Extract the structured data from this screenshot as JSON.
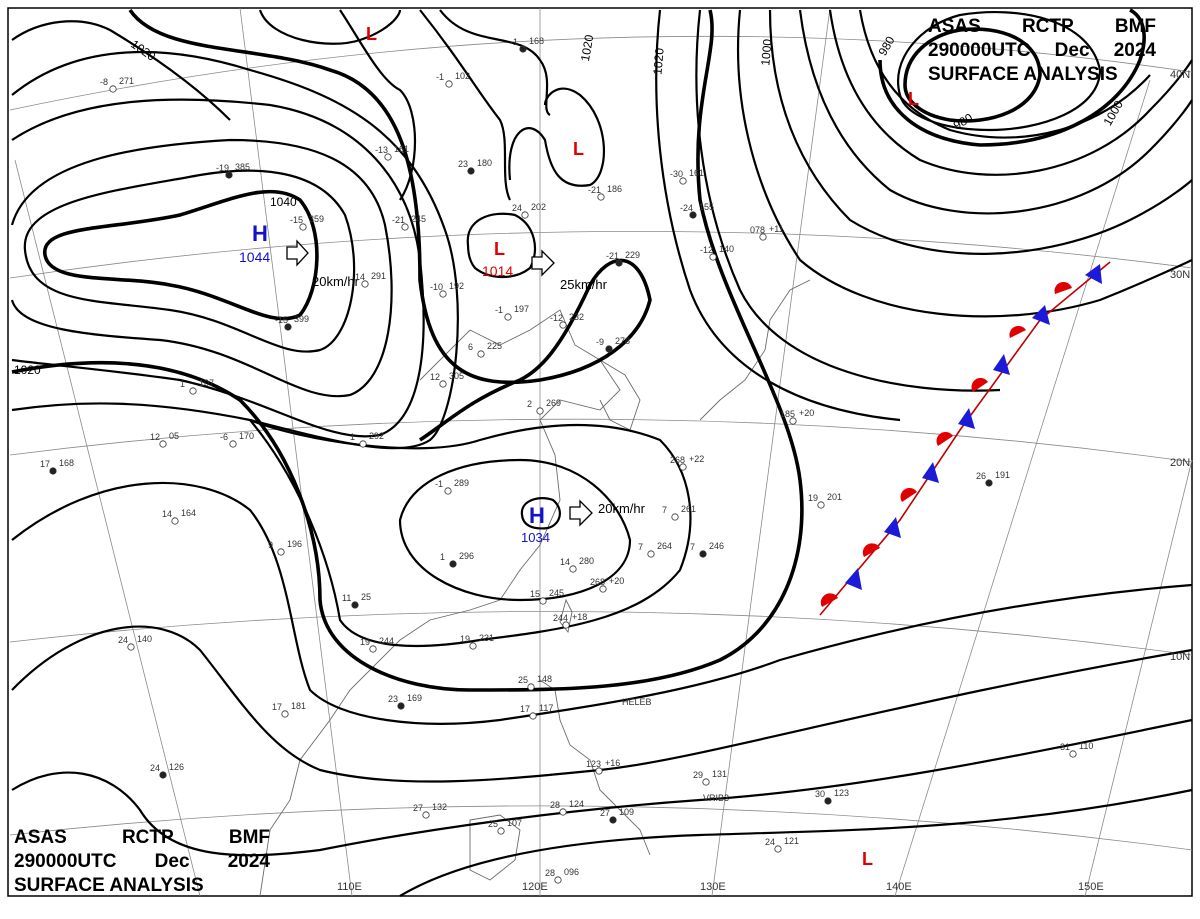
{
  "header": {
    "line1": [
      "ASAS",
      "RCTP",
      "BMF"
    ],
    "line2": [
      "290000UTC",
      "Dec",
      "2024"
    ],
    "line3": "SURFACE ANALYSIS"
  },
  "isobars": {
    "l1040": "1040",
    "l1020a": "1020",
    "l1020b": "1020",
    "l1020c": "1020",
    "l1020d": "1020",
    "l1000": "1000",
    "l980a": "980",
    "l980b": "980",
    "l1000b": "1000"
  },
  "systems": {
    "high1": {
      "symbol": "H",
      "pressure": "1044",
      "motion": "20km/hr"
    },
    "high2": {
      "symbol": "H",
      "pressure": "1034",
      "motion": "20km/hr"
    },
    "low1": {
      "symbol": "L",
      "pressure": "1014",
      "motion": "25km/hr"
    },
    "low_marks": [
      "L",
      "L",
      "L",
      "L"
    ]
  },
  "latitudes": [
    "40N",
    "30N",
    "20N",
    "10N"
  ],
  "longitudes": [
    "110E",
    "120E",
    "130E",
    "140E",
    "150E"
  ],
  "station_labels": {
    "heleb": "HELEB",
    "vrib": "VRIB3"
  },
  "stations": [
    {
      "t": "-19",
      "p": "385"
    },
    {
      "t": "-15",
      "p": "359"
    },
    {
      "t": "-21",
      "p": "245"
    },
    {
      "t": "-13",
      "p": "161"
    },
    {
      "t": "23",
      "p": "180"
    },
    {
      "t": "-1",
      "p": "102"
    },
    {
      "t": "24",
      "p": "202"
    },
    {
      "t": "-21",
      "p": "186"
    },
    {
      "t": "-21",
      "p": "229"
    },
    {
      "t": "-10",
      "p": "192"
    },
    {
      "t": "-1",
      "p": "197"
    },
    {
      "t": "-12",
      "p": "232"
    },
    {
      "t": "-15",
      "p": "399"
    },
    {
      "t": "-14",
      "p": "291"
    },
    {
      "t": "6",
      "p": "225"
    },
    {
      "t": "12",
      "p": "305"
    },
    {
      "t": "-9",
      "p": "278"
    },
    {
      "t": "2",
      "p": "269"
    },
    {
      "t": "-6",
      "p": "170"
    },
    {
      "t": "1",
      "p": "292"
    },
    {
      "t": "17",
      "p": "168"
    },
    {
      "t": "14",
      "p": "164"
    },
    {
      "t": "9",
      "p": "196"
    },
    {
      "t": "-1",
      "p": "289"
    },
    {
      "t": "1",
      "p": "296"
    },
    {
      "t": "14",
      "p": "280"
    },
    {
      "t": "7",
      "p": "261"
    },
    {
      "t": "7",
      "p": "264"
    },
    {
      "t": "7",
      "p": "246"
    },
    {
      "t": "268",
      "p": "+20"
    },
    {
      "t": "15",
      "p": "245"
    },
    {
      "t": "244",
      "p": "+18"
    },
    {
      "t": "11",
      "p": "25"
    },
    {
      "t": "19",
      "p": "244"
    },
    {
      "t": "19",
      "p": "231"
    },
    {
      "t": "24",
      "p": "140"
    },
    {
      "t": "23",
      "p": "169"
    },
    {
      "t": "17",
      "p": "181"
    },
    {
      "t": "25",
      "p": "148"
    },
    {
      "t": "17",
      "p": "117"
    },
    {
      "t": "24",
      "p": "126"
    },
    {
      "t": "27",
      "p": "132"
    },
    {
      "t": "25",
      "p": "107"
    },
    {
      "t": "28",
      "p": "124"
    },
    {
      "t": "27",
      "p": "109"
    },
    {
      "t": "28",
      "p": "096"
    },
    {
      "t": "123",
      "p": "+16"
    },
    {
      "t": "29",
      "p": "131"
    },
    {
      "t": "30",
      "p": "123"
    },
    {
      "t": "24",
      "p": "121"
    },
    {
      "t": "31",
      "p": "110"
    },
    {
      "t": "19",
      "p": "201"
    },
    {
      "t": "26",
      "p": "191"
    },
    {
      "t": "185",
      "p": "+20"
    },
    {
      "t": "-12",
      "p": "140"
    },
    {
      "t": "-30",
      "p": "161"
    },
    {
      "t": "-24",
      "p": "155"
    },
    {
      "t": "078",
      "p": "+11"
    },
    {
      "t": "268",
      "p": "+22"
    },
    {
      "t": "-8",
      "p": "271"
    },
    {
      "t": "-1",
      "p": "168"
    },
    {
      "t": "1",
      "p": "107"
    },
    {
      "t": "12",
      "p": "05"
    }
  ]
}
